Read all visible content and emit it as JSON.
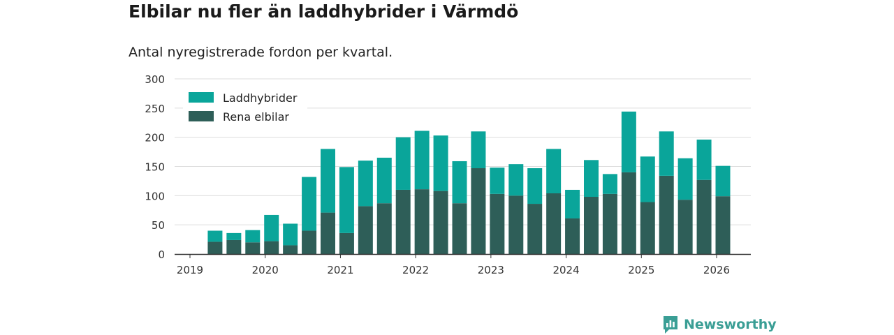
{
  "title": "Elbilar nu fler än laddhybrider i Värmdö",
  "subtitle": "Antal nyregistrerade fordon per kvartal.",
  "brand": "Newsworthy",
  "colors": {
    "laddhybrider": "#0aa59a",
    "rena_elbilar": "#2e5e58",
    "grid": "#dddddd",
    "axis": "#333333",
    "brand": "#3a9e95"
  },
  "chart_data": {
    "type": "bar",
    "stacked": true,
    "categories": [
      "2019Q2",
      "2019Q3",
      "2019Q4",
      "2020Q1",
      "2020Q2",
      "2020Q3",
      "2020Q4",
      "2021Q1",
      "2021Q2",
      "2021Q3",
      "2021Q4",
      "2022Q1",
      "2022Q2",
      "2022Q3",
      "2022Q4",
      "2023Q1",
      "2023Q2",
      "2023Q3",
      "2023Q4",
      "2024Q1",
      "2024Q2",
      "2024Q3",
      "2024Q4",
      "2025Q1",
      "2025Q2",
      "2025Q3",
      "2025Q4",
      "2026Q1"
    ],
    "series": [
      {
        "name": "Rena elbilar",
        "values": [
          21,
          24,
          20,
          22,
          15,
          40,
          71,
          36,
          82,
          87,
          110,
          111,
          108,
          87,
          147,
          103,
          100,
          86,
          104,
          61,
          98,
          103,
          140,
          89,
          134,
          93,
          127,
          99
        ]
      },
      {
        "name": "Laddhybrider",
        "values": [
          19,
          12,
          21,
          45,
          37,
          92,
          109,
          113,
          78,
          78,
          90,
          100,
          95,
          72,
          63,
          45,
          54,
          61,
          76,
          49,
          63,
          34,
          104,
          78,
          76,
          71,
          69,
          52
        ]
      }
    ],
    "xticks": [
      "2019",
      "2020",
      "2021",
      "2022",
      "2023",
      "2024",
      "2025",
      "2026"
    ],
    "yticks": [
      0,
      50,
      100,
      150,
      200,
      250,
      300
    ],
    "ylim": [
      0,
      300
    ],
    "grid": true,
    "legend_position": "top-left"
  }
}
